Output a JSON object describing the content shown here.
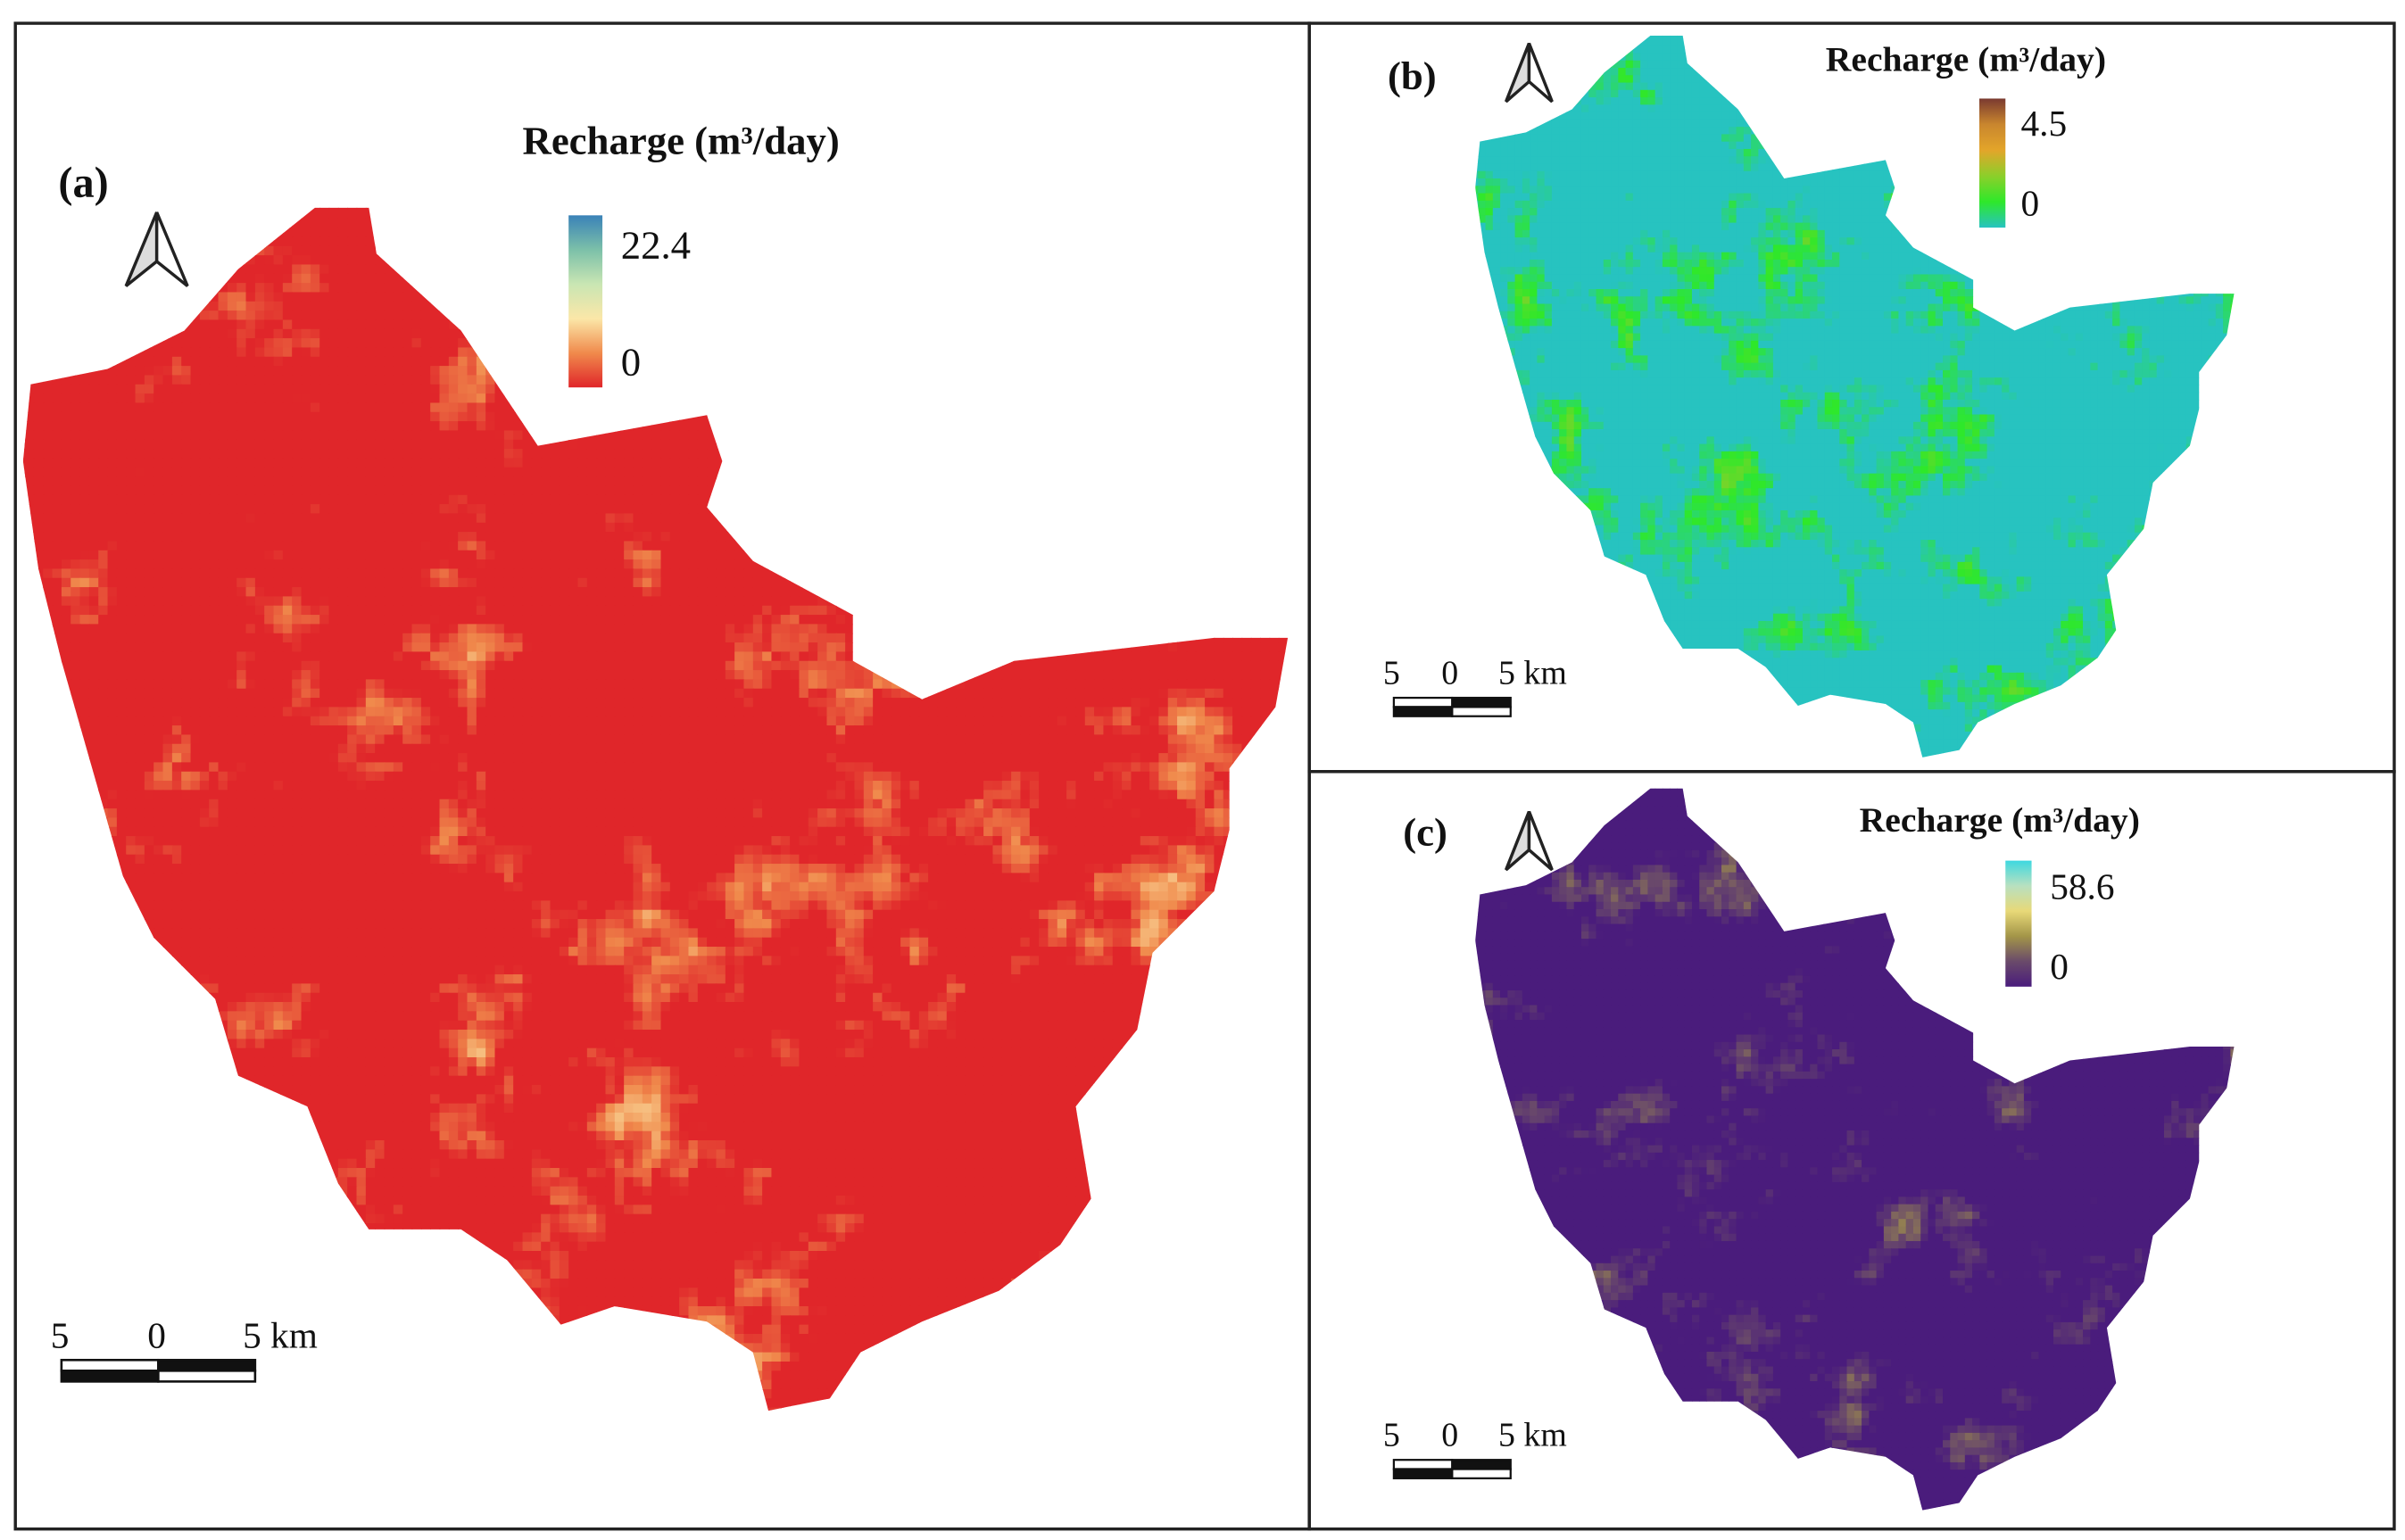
{
  "panels": [
    {
      "id": "a",
      "label": "(a)",
      "legend": {
        "title": "Recharge (m³/day)",
        "max": "22.4",
        "min": "0",
        "ramp": [
          "#e0262a",
          "#f08a4c",
          "#fbe7a8",
          "#c9e6b3",
          "#7cc0a9",
          "#3a82b8"
        ]
      },
      "scale_bar": {
        "left": "5",
        "mid": "0",
        "right": "5 km"
      }
    },
    {
      "id": "b",
      "label": "(b)",
      "legend": {
        "title": "Recharge (m³/day)",
        "max": "4.5",
        "min": "0",
        "ramp": [
          "#27c3c0",
          "#2ee82a",
          "#8ccf2a",
          "#e3a52a",
          "#c9862e",
          "#7a3a30"
        ]
      },
      "scale_bar": {
        "left": "5",
        "mid": "0",
        "right": "5 km"
      }
    },
    {
      "id": "c",
      "label": "(c)",
      "legend": {
        "title": "Recharge (m³/day)",
        "max": "58.6",
        "min": "0",
        "ramp": [
          "#4a1c7c",
          "#6a4a6a",
          "#a39548",
          "#e8d978",
          "#b8e0c0",
          "#3dd8e0"
        ]
      },
      "scale_bar": {
        "left": "5",
        "mid": "0",
        "right": "5 km"
      }
    }
  ],
  "north_arrow_icon": "north-arrow-icon"
}
